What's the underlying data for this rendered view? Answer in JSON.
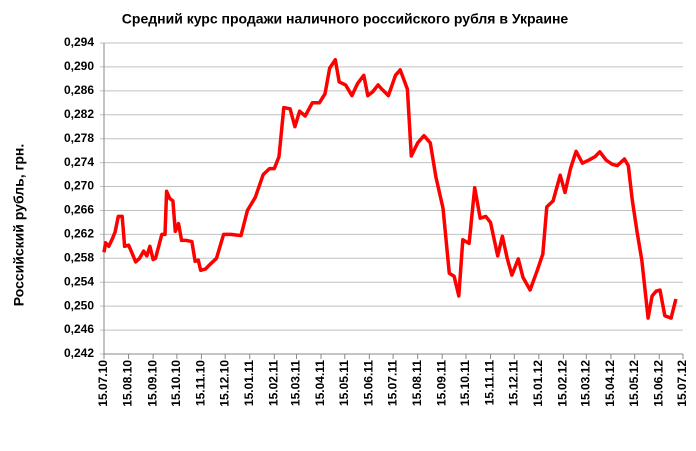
{
  "chart_data": {
    "type": "line",
    "title": "Средний курс продажи наличного российского рубля в Украине",
    "y_label": "Российский рубль, грн.",
    "xlim": [
      "15.07.10",
      "15.07.12"
    ],
    "xticks": [
      "15.07.10",
      "15.08.10",
      "15.09.10",
      "15.10.10",
      "15.11.10",
      "15.12.10",
      "15.01.11",
      "15.02.11",
      "15.03.11",
      "15.04.11",
      "15.05.11",
      "15.06.11",
      "15.07.11",
      "15.08.11",
      "15.09.11",
      "15.10.11",
      "15.11.11",
      "15.12.11",
      "15.01.12",
      "15.02.12",
      "15.03.12",
      "15.04.12",
      "15.05.12",
      "15.06.12",
      "15.07.12"
    ],
    "ylim": [
      0.242,
      0.294
    ],
    "yticks": [
      {
        "value": 0.242,
        "label": "0,242"
      },
      {
        "value": 0.246,
        "label": "0,246"
      },
      {
        "value": 0.25,
        "label": "0,250"
      },
      {
        "value": 0.254,
        "label": "0,254"
      },
      {
        "value": 0.258,
        "label": "0,258"
      },
      {
        "value": 0.262,
        "label": "0,262"
      },
      {
        "value": 0.266,
        "label": "0,266"
      },
      {
        "value": 0.27,
        "label": "0,270"
      },
      {
        "value": 0.274,
        "label": "0,274"
      },
      {
        "value": 0.278,
        "label": "0,278"
      },
      {
        "value": 0.282,
        "label": "0,282"
      },
      {
        "value": 0.286,
        "label": "0,286"
      },
      {
        "value": 0.29,
        "label": "0,290"
      },
      {
        "value": 0.294,
        "label": "0,294"
      }
    ],
    "grid": true,
    "color": "#ff0000",
    "x": [
      "15.07.10",
      "17.07.10",
      "21.07.10",
      "25.07.10",
      "29.07.10",
      "02.08.10",
      "07.08.10",
      "10.08.10",
      "15.08.10",
      "19.08.10",
      "24.08.10",
      "29.08.10",
      "03.09.10",
      "07.09.10",
      "11.09.10",
      "15.09.10",
      "18.09.10",
      "22.09.10",
      "26.09.10",
      "30.09.10",
      "02.10.10",
      "06.10.10",
      "10.10.10",
      "13.10.10",
      "17.10.10",
      "21.10.10",
      "27.10.10",
      "03.11.10",
      "07.11.10",
      "11.11.10",
      "14.11.10",
      "20.11.10",
      "26.11.10",
      "04.12.10",
      "13.12.10",
      "22.12.10",
      "04.01.11",
      "12.01.11",
      "22.01.11",
      "01.02.11",
      "09.02.11",
      "15.02.11",
      "21.02.11",
      "27.02.11",
      "07.03.11",
      "13.03.11",
      "19.03.11",
      "26.03.11",
      "04.04.11",
      "13.04.11",
      "20.04.11",
      "26.04.11",
      "03.05.11",
      "08.05.11",
      "16.05.11",
      "24.05.11",
      "31.05.11",
      "08.06.11",
      "13.06.11",
      "19.06.11",
      "26.06.11",
      "30.06.11",
      "09.07.11",
      "18.07.11",
      "24.07.11",
      "02.08.11",
      "07.08.11",
      "15.08.11",
      "23.08.11",
      "31.08.11",
      "07.09.11",
      "16.09.11",
      "24.09.11",
      "30.09.11",
      "06.10.11",
      "11.10.11",
      "19.10.11",
      "26.10.11",
      "02.11.11",
      "09.11.11",
      "15.11.11",
      "24.11.11",
      "30.11.11",
      "06.12.11",
      "12.12.11",
      "20.12.11",
      "26.12.11",
      "04.01.12",
      "13.01.12",
      "20.01.12",
      "25.01.12",
      "02.02.12",
      "11.02.12",
      "17.02.12",
      "24.02.12",
      "02.03.12",
      "10.03.12",
      "18.03.12",
      "26.03.12",
      "01.04.12",
      "09.04.12",
      "17.04.12",
      "23.04.12",
      "02.05.12",
      "07.05.12",
      "12.05.12",
      "18.05.12",
      "24.05.12",
      "01.06.12",
      "06.06.12",
      "11.06.12",
      "16.06.12",
      "22.06.12",
      "30.06.12",
      "06.07.12"
    ],
    "values": [
      0.259,
      0.2606,
      0.26,
      0.2611,
      0.2624,
      0.265,
      0.265,
      0.26,
      0.2602,
      0.259,
      0.2574,
      0.258,
      0.2592,
      0.2584,
      0.26,
      0.2578,
      0.258,
      0.26,
      0.262,
      0.262,
      0.2692,
      0.268,
      0.2676,
      0.2625,
      0.2638,
      0.261,
      0.261,
      0.2608,
      0.2575,
      0.2577,
      0.256,
      0.2562,
      0.257,
      0.258,
      0.262,
      0.262,
      0.2618,
      0.266,
      0.2682,
      0.272,
      0.273,
      0.273,
      0.275,
      0.2832,
      0.283,
      0.28,
      0.2826,
      0.2818,
      0.284,
      0.284,
      0.2855,
      0.2898,
      0.2912,
      0.2875,
      0.287,
      0.2852,
      0.2872,
      0.2886,
      0.2852,
      0.2858,
      0.287,
      0.2864,
      0.2852,
      0.2886,
      0.2895,
      0.2863,
      0.2751,
      0.2773,
      0.2785,
      0.2773,
      0.2716,
      0.2664,
      0.2555,
      0.255,
      0.2517,
      0.2611,
      0.2605,
      0.2698,
      0.2647,
      0.265,
      0.264,
      0.2584,
      0.2617,
      0.258,
      0.2552,
      0.2579,
      0.2548,
      0.2527,
      0.256,
      0.2587,
      0.2666,
      0.2676,
      0.2719,
      0.269,
      0.273,
      0.2759,
      0.2739,
      0.2744,
      0.275,
      0.2758,
      0.2744,
      0.2737,
      0.2735,
      0.2746,
      0.2735,
      0.2677,
      0.2624,
      0.2577,
      0.248,
      0.2517,
      0.2525,
      0.2527,
      0.2484,
      0.248,
      0.2512
    ]
  }
}
